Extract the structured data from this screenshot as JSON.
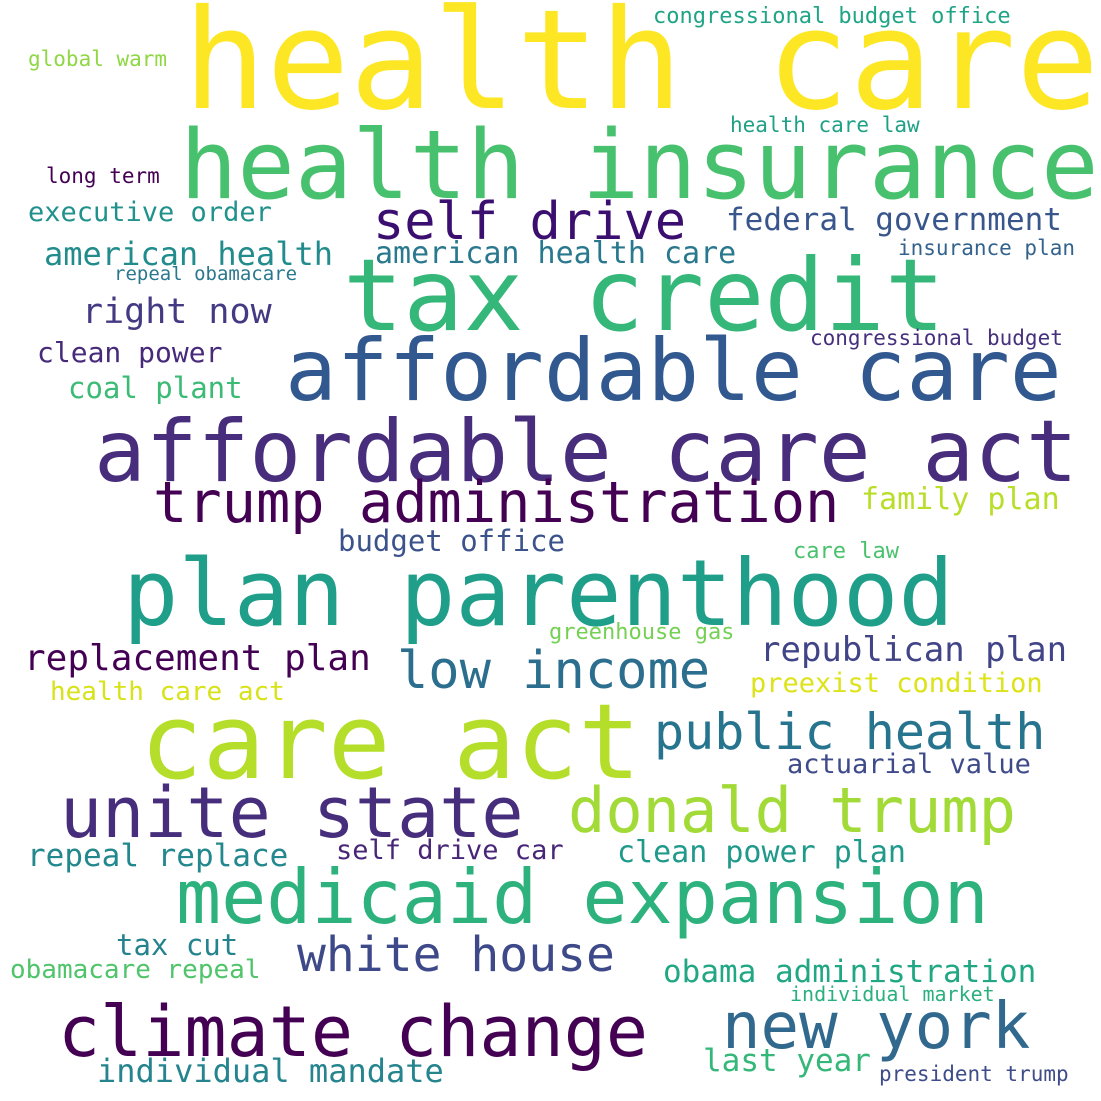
{
  "words": [
    {
      "text": "health care",
      "color": "#fde725"
    },
    {
      "text": "health insurance",
      "color": "#48c16e"
    },
    {
      "text": "tax credit",
      "color": "#35b779"
    },
    {
      "text": "self drive",
      "color": "#3b0f70"
    },
    {
      "text": "affordable care",
      "color": "#31588f"
    },
    {
      "text": "affordable care act",
      "color": "#472d7b"
    },
    {
      "text": "trump administration",
      "color": "#440154"
    },
    {
      "text": "plan parenthood",
      "color": "#1f9e89"
    },
    {
      "text": "care act",
      "color": "#b5de2b"
    },
    {
      "text": "low income",
      "color": "#2c6e8e"
    },
    {
      "text": "public health",
      "color": "#26748e"
    },
    {
      "text": "unite state",
      "color": "#472e7c"
    },
    {
      "text": "donald trump",
      "color": "#a2da37"
    },
    {
      "text": "medicaid expansion",
      "color": "#2db27d"
    },
    {
      "text": "climate change",
      "color": "#440154"
    },
    {
      "text": "new york",
      "color": "#31688e"
    },
    {
      "text": "white house",
      "color": "#3e4989"
    },
    {
      "text": "congressional budget office",
      "color": "#20a486"
    },
    {
      "text": "global warm",
      "color": "#8fd744"
    },
    {
      "text": "health care law",
      "color": "#1fa187"
    },
    {
      "text": "long term",
      "color": "#440154"
    },
    {
      "text": "executive order",
      "color": "#21918c"
    },
    {
      "text": "federal government",
      "color": "#39568c"
    },
    {
      "text": "american health",
      "color": "#228c8d"
    },
    {
      "text": "american health care",
      "color": "#2a788e"
    },
    {
      "text": "insurance plan",
      "color": "#33638d"
    },
    {
      "text": "repeal obamacare",
      "color": "#2a788e"
    },
    {
      "text": "right now",
      "color": "#443a83"
    },
    {
      "text": "clean power",
      "color": "#472a7a"
    },
    {
      "text": "congressional budget",
      "color": "#46307e"
    },
    {
      "text": "coal plant",
      "color": "#3bbb75"
    },
    {
      "text": "family plan",
      "color": "#b8de29"
    },
    {
      "text": "budget office",
      "color": "#3b528b"
    },
    {
      "text": "care law",
      "color": "#4ac16d"
    },
    {
      "text": "greenhouse gas",
      "color": "#75d054"
    },
    {
      "text": "replacement plan",
      "color": "#440154"
    },
    {
      "text": "republican plan",
      "color": "#414487"
    },
    {
      "text": "health care act",
      "color": "#d8e219"
    },
    {
      "text": "preexist condition",
      "color": "#dde318"
    },
    {
      "text": "actuarial value",
      "color": "#3e4a89"
    },
    {
      "text": "repeal replace",
      "color": "#23888e"
    },
    {
      "text": "self drive car",
      "color": "#482576"
    },
    {
      "text": "clean power plan",
      "color": "#1f9a8a"
    },
    {
      "text": "tax cut",
      "color": "#25838e"
    },
    {
      "text": "obamacare repeal",
      "color": "#50c46a"
    },
    {
      "text": "obama administration",
      "color": "#22a785"
    },
    {
      "text": "individual market",
      "color": "#2ab07f"
    },
    {
      "text": "last year",
      "color": "#35b779"
    },
    {
      "text": "individual mandate",
      "color": "#25848e"
    },
    {
      "text": "president trump",
      "color": "#3e4c8a"
    }
  ]
}
